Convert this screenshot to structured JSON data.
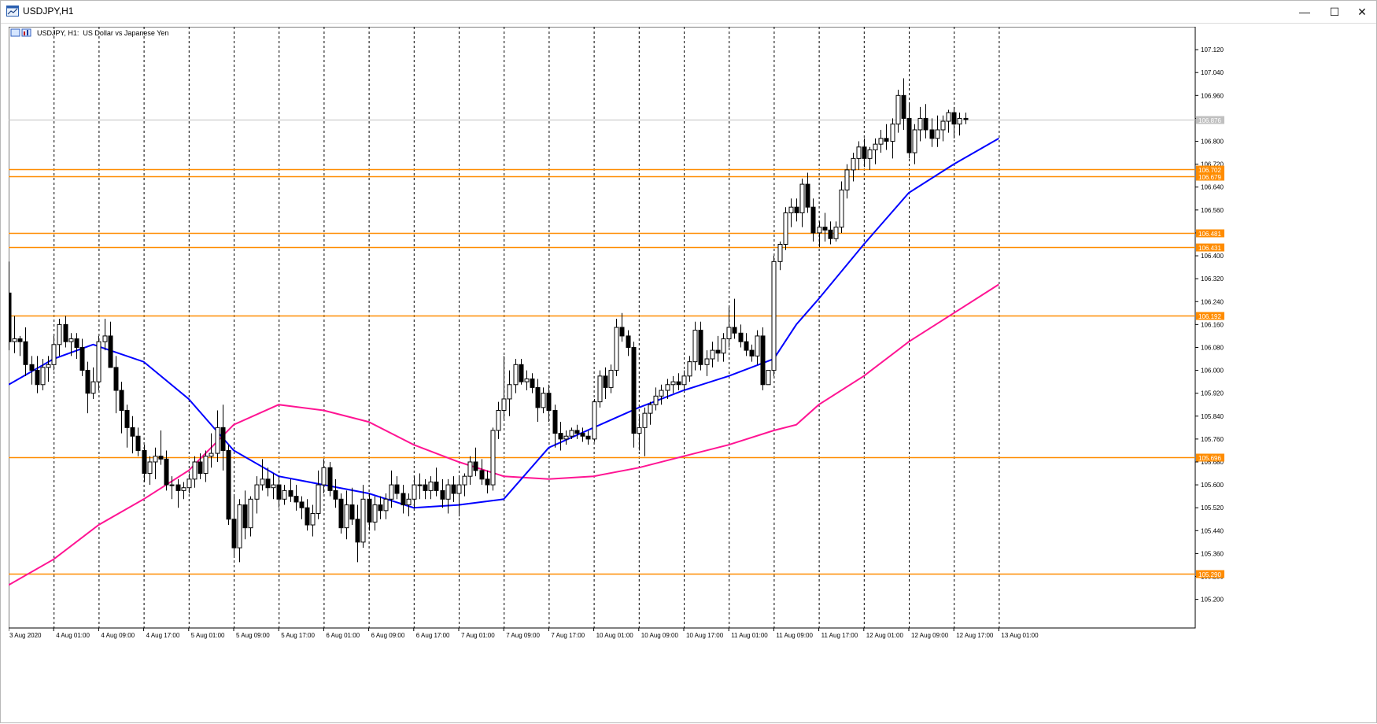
{
  "window": {
    "title": "USDJPY,H1",
    "buttons": {
      "minimize": "—",
      "maximize": "☐",
      "close": "✕"
    }
  },
  "chart_data": {
    "type": "candlestick",
    "title": "USDJPY, H1:  US Dollar vs Japanese Yen",
    "symbol": "USDJPY",
    "timeframe": "H1",
    "ylim": [
      105.1,
      107.2
    ],
    "grid": "vertical-dashed",
    "y_ticks": [
      "107.120",
      "107.040",
      "106.960",
      "106.880",
      "106.800",
      "106.720",
      "106.640",
      "106.560",
      "106.480",
      "106.400",
      "106.320",
      "106.240",
      "106.160",
      "106.080",
      "106.000",
      "105.920",
      "105.840",
      "105.760",
      "105.680",
      "105.600",
      "105.520",
      "105.440",
      "105.360",
      "105.280",
      "105.200"
    ],
    "y_tick_values": [
      107.12,
      107.04,
      106.96,
      106.88,
      106.8,
      106.72,
      106.64,
      106.56,
      106.48,
      106.4,
      106.32,
      106.24,
      106.16,
      106.08,
      106.0,
      105.92,
      105.84,
      105.76,
      105.68,
      105.6,
      105.52,
      105.44,
      105.36,
      105.28,
      105.2
    ],
    "x_ticks": [
      "3 Aug 2020",
      "4 Aug 01:00",
      "4 Aug 09:00",
      "4 Aug 17:00",
      "5 Aug 01:00",
      "5 Aug 09:00",
      "5 Aug 17:00",
      "6 Aug 01:00",
      "6 Aug 09:00",
      "6 Aug 17:00",
      "7 Aug 01:00",
      "7 Aug 09:00",
      "7 Aug 17:00",
      "10 Aug 01:00",
      "10 Aug 09:00",
      "10 Aug 17:00",
      "11 Aug 01:00",
      "11 Aug 09:00",
      "11 Aug 17:00",
      "12 Aug 01:00",
      "12 Aug 09:00",
      "12 Aug 17:00",
      "13 Aug 01:00"
    ],
    "x_tick_bars": [
      0,
      8,
      16,
      24,
      32,
      40,
      48,
      56,
      64,
      72,
      80,
      88,
      96,
      104,
      112,
      120,
      128,
      136,
      144,
      152,
      160,
      168,
      176
    ],
    "current_price": {
      "label": "106.876",
      "value": 106.876
    },
    "horizontal_levels": [
      {
        "label": "106.702",
        "value": 106.702
      },
      {
        "label": "106.679",
        "value": 106.679
      },
      {
        "label": "106.481",
        "value": 106.481
      },
      {
        "label": "106.431",
        "value": 106.431
      },
      {
        "label": "106.192",
        "value": 106.192
      },
      {
        "label": "105.696",
        "value": 105.696
      },
      {
        "label": "105.290",
        "value": 105.29
      }
    ],
    "ma_fast_points": [
      [
        0,
        105.95
      ],
      [
        8,
        106.04
      ],
      [
        15,
        106.09
      ],
      [
        24,
        106.03
      ],
      [
        32,
        105.9
      ],
      [
        40,
        105.72
      ],
      [
        48,
        105.63
      ],
      [
        56,
        105.6
      ],
      [
        64,
        105.57
      ],
      [
        72,
        105.52
      ],
      [
        80,
        105.53
      ],
      [
        88,
        105.55
      ],
      [
        96,
        105.73
      ],
      [
        104,
        105.8
      ],
      [
        112,
        105.87
      ],
      [
        120,
        105.93
      ],
      [
        128,
        105.98
      ],
      [
        136,
        106.04
      ],
      [
        140,
        106.16
      ],
      [
        144,
        106.25
      ],
      [
        152,
        106.44
      ],
      [
        160,
        106.62
      ],
      [
        168,
        106.72
      ],
      [
        176,
        106.81
      ]
    ],
    "ma_slow_points": [
      [
        0,
        105.25
      ],
      [
        8,
        105.34
      ],
      [
        16,
        105.46
      ],
      [
        24,
        105.55
      ],
      [
        32,
        105.65
      ],
      [
        40,
        105.81
      ],
      [
        48,
        105.88
      ],
      [
        56,
        105.86
      ],
      [
        64,
        105.82
      ],
      [
        72,
        105.74
      ],
      [
        80,
        105.68
      ],
      [
        88,
        105.63
      ],
      [
        96,
        105.62
      ],
      [
        104,
        105.63
      ],
      [
        112,
        105.66
      ],
      [
        120,
        105.7
      ],
      [
        128,
        105.74
      ],
      [
        136,
        105.79
      ],
      [
        140,
        105.81
      ],
      [
        144,
        105.88
      ],
      [
        152,
        105.98
      ],
      [
        160,
        106.1
      ],
      [
        168,
        106.2
      ],
      [
        176,
        106.3
      ]
    ],
    "candles": [
      [
        106.27,
        106.38,
        106.07,
        106.1
      ],
      [
        106.1,
        106.19,
        106.06,
        106.11
      ],
      [
        106.11,
        106.12,
        106.05,
        106.1
      ],
      [
        106.1,
        106.15,
        105.98,
        106.02
      ],
      [
        106.02,
        106.05,
        105.95,
        106.0
      ],
      [
        106.0,
        106.05,
        105.92,
        105.95
      ],
      [
        105.95,
        106.04,
        105.93,
        106.01
      ],
      [
        106.01,
        106.05,
        105.96,
        106.02
      ],
      [
        106.02,
        106.12,
        106.0,
        106.09
      ],
      [
        106.09,
        106.18,
        106.05,
        106.16
      ],
      [
        106.16,
        106.19,
        106.08,
        106.1
      ],
      [
        106.1,
        106.13,
        106.05,
        106.11
      ],
      [
        106.11,
        106.13,
        106.04,
        106.08
      ],
      [
        106.08,
        106.11,
        105.98,
        106.0
      ],
      [
        106.0,
        106.03,
        105.85,
        105.92
      ],
      [
        105.92,
        106.01,
        105.9,
        105.96
      ],
      [
        105.96,
        106.12,
        105.93,
        106.1
      ],
      [
        106.1,
        106.18,
        106.07,
        106.12
      ],
      [
        106.12,
        106.17,
        106.02,
        106.01
      ],
      [
        106.01,
        106.05,
        105.85,
        105.93
      ],
      [
        105.93,
        105.96,
        105.78,
        105.86
      ],
      [
        105.86,
        105.88,
        105.73,
        105.8
      ],
      [
        105.8,
        105.84,
        105.71,
        105.77
      ],
      [
        105.77,
        105.8,
        105.7,
        105.72
      ],
      [
        105.72,
        105.74,
        105.61,
        105.64
      ],
      [
        105.64,
        105.7,
        105.6,
        105.68
      ],
      [
        105.68,
        105.73,
        105.62,
        105.7
      ],
      [
        105.7,
        105.79,
        105.67,
        105.69
      ],
      [
        105.69,
        105.72,
        105.58,
        105.6
      ],
      [
        105.6,
        105.63,
        105.55,
        105.6
      ],
      [
        105.6,
        105.62,
        105.52,
        105.58
      ],
      [
        105.58,
        105.61,
        105.55,
        105.59
      ],
      [
        105.59,
        105.64,
        105.57,
        105.62
      ],
      [
        105.62,
        105.7,
        105.59,
        105.68
      ],
      [
        105.68,
        105.71,
        105.62,
        105.64
      ],
      [
        105.64,
        105.72,
        105.61,
        105.7
      ],
      [
        105.7,
        105.78,
        105.66,
        105.71
      ],
      [
        105.71,
        105.86,
        105.68,
        105.8
      ],
      [
        105.8,
        105.88,
        105.65,
        105.72
      ],
      [
        105.72,
        105.74,
        105.46,
        105.48
      ],
      [
        105.48,
        105.56,
        105.35,
        105.38
      ],
      [
        105.38,
        105.55,
        105.33,
        105.53
      ],
      [
        105.53,
        105.58,
        105.41,
        105.45
      ],
      [
        105.45,
        105.56,
        105.42,
        105.55
      ],
      [
        105.55,
        105.63,
        105.5,
        105.6
      ],
      [
        105.6,
        105.69,
        105.58,
        105.62
      ],
      [
        105.62,
        105.66,
        105.56,
        105.59
      ],
      [
        105.59,
        105.64,
        105.55,
        105.6
      ],
      [
        105.6,
        105.63,
        105.52,
        105.55
      ],
      [
        105.55,
        105.6,
        105.53,
        105.58
      ],
      [
        105.58,
        105.62,
        105.54,
        105.56
      ],
      [
        105.56,
        105.6,
        105.51,
        105.54
      ],
      [
        105.54,
        105.56,
        105.48,
        105.52
      ],
      [
        105.52,
        105.55,
        105.44,
        105.46
      ],
      [
        105.46,
        105.53,
        105.42,
        105.5
      ],
      [
        105.5,
        105.65,
        105.48,
        105.6
      ],
      [
        105.6,
        105.69,
        105.57,
        105.66
      ],
      [
        105.66,
        105.68,
        105.56,
        105.58
      ],
      [
        105.58,
        105.62,
        105.52,
        105.55
      ],
      [
        105.55,
        105.57,
        105.43,
        105.45
      ],
      [
        105.45,
        105.58,
        105.41,
        105.53
      ],
      [
        105.53,
        105.59,
        105.46,
        105.48
      ],
      [
        105.48,
        105.53,
        105.33,
        105.4
      ],
      [
        105.4,
        105.6,
        105.38,
        105.55
      ],
      [
        105.55,
        105.57,
        105.44,
        105.47
      ],
      [
        105.47,
        105.56,
        105.44,
        105.53
      ],
      [
        105.53,
        105.56,
        105.48,
        105.51
      ],
      [
        105.51,
        105.57,
        105.48,
        105.55
      ],
      [
        105.55,
        105.65,
        105.52,
        105.6
      ],
      [
        105.6,
        105.63,
        105.55,
        105.57
      ],
      [
        105.57,
        105.6,
        105.5,
        105.53
      ],
      [
        105.53,
        105.57,
        105.49,
        105.55
      ],
      [
        105.55,
        105.63,
        105.52,
        105.6
      ],
      [
        105.6,
        105.64,
        105.55,
        105.6
      ],
      [
        105.6,
        105.62,
        105.55,
        105.58
      ],
      [
        105.58,
        105.63,
        105.55,
        105.61
      ],
      [
        105.61,
        105.66,
        105.56,
        105.58
      ],
      [
        105.58,
        105.62,
        105.52,
        105.55
      ],
      [
        105.55,
        105.62,
        105.5,
        105.6
      ],
      [
        105.6,
        105.63,
        105.54,
        105.57
      ],
      [
        105.57,
        105.63,
        105.49,
        105.6
      ],
      [
        105.6,
        105.64,
        105.56,
        105.63
      ],
      [
        105.63,
        105.7,
        105.6,
        105.68
      ],
      [
        105.68,
        105.73,
        105.63,
        105.65
      ],
      [
        105.65,
        105.69,
        105.6,
        105.62
      ],
      [
        105.62,
        105.65,
        105.57,
        105.6
      ],
      [
        105.6,
        105.8,
        105.58,
        105.79
      ],
      [
        105.79,
        105.89,
        105.76,
        105.86
      ],
      [
        105.86,
        106.05,
        105.83,
        105.9
      ],
      [
        105.9,
        106.0,
        105.84,
        105.95
      ],
      [
        105.95,
        106.04,
        105.92,
        106.02
      ],
      [
        106.02,
        106.04,
        105.95,
        105.96
      ],
      [
        105.96,
        106.0,
        105.93,
        105.97
      ],
      [
        105.97,
        105.99,
        105.92,
        105.94
      ],
      [
        105.94,
        105.97,
        105.82,
        105.87
      ],
      [
        105.87,
        105.94,
        105.85,
        105.92
      ],
      [
        105.92,
        105.95,
        105.82,
        105.86
      ],
      [
        105.86,
        105.88,
        105.73,
        105.78
      ],
      [
        105.78,
        105.82,
        105.72,
        105.76
      ],
      [
        105.76,
        105.79,
        105.74,
        105.77
      ],
      [
        105.77,
        105.8,
        105.76,
        105.79
      ],
      [
        105.79,
        105.81,
        105.76,
        105.78
      ],
      [
        105.78,
        105.8,
        105.75,
        105.77
      ],
      [
        105.77,
        105.79,
        105.74,
        105.76
      ],
      [
        105.76,
        105.9,
        105.75,
        105.89
      ],
      [
        105.89,
        106.0,
        105.87,
        105.98
      ],
      [
        105.98,
        106.01,
        105.9,
        105.94
      ],
      [
        105.94,
        106.02,
        105.92,
        106.0
      ],
      [
        106.0,
        106.18,
        105.98,
        106.15
      ],
      [
        106.15,
        106.2,
        106.1,
        106.12
      ],
      [
        106.12,
        106.14,
        106.05,
        106.08
      ],
      [
        106.08,
        106.1,
        105.73,
        105.78
      ],
      [
        105.78,
        105.84,
        105.72,
        105.8
      ],
      [
        105.8,
        105.87,
        105.7,
        105.85
      ],
      [
        105.85,
        105.89,
        105.81,
        105.88
      ],
      [
        105.88,
        105.94,
        105.86,
        105.91
      ],
      [
        105.91,
        105.95,
        105.88,
        105.93
      ],
      [
        105.93,
        105.97,
        105.9,
        105.95
      ],
      [
        105.95,
        105.98,
        105.92,
        105.96
      ],
      [
        105.96,
        105.99,
        105.93,
        105.95
      ],
      [
        105.95,
        106.0,
        105.93,
        105.98
      ],
      [
        105.98,
        106.05,
        105.96,
        106.03
      ],
      [
        106.03,
        106.17,
        106.0,
        106.14
      ],
      [
        106.14,
        106.17,
        106.0,
        106.02
      ],
      [
        106.02,
        106.07,
        105.98,
        106.04
      ],
      [
        106.04,
        106.1,
        106.01,
        106.07
      ],
      [
        106.07,
        106.12,
        106.03,
        106.06
      ],
      [
        106.06,
        106.13,
        106.03,
        106.11
      ],
      [
        106.11,
        106.22,
        106.08,
        106.15
      ],
      [
        106.15,
        106.25,
        106.11,
        106.13
      ],
      [
        106.13,
        106.16,
        106.08,
        106.1
      ],
      [
        106.1,
        106.13,
        106.05,
        106.07
      ],
      [
        106.07,
        106.09,
        106.03,
        106.05
      ],
      [
        106.05,
        106.14,
        106.02,
        106.12
      ],
      [
        106.12,
        106.15,
        105.93,
        105.95
      ],
      [
        105.95,
        106.0,
        105.96,
        106.0
      ],
      [
        106.0,
        106.4,
        105.98,
        106.38
      ],
      [
        106.38,
        106.45,
        106.35,
        106.44
      ],
      [
        106.44,
        106.57,
        106.42,
        106.55
      ],
      [
        106.55,
        106.6,
        106.5,
        106.57
      ],
      [
        106.57,
        106.6,
        106.52,
        106.55
      ],
      [
        106.55,
        106.67,
        106.5,
        106.65
      ],
      [
        106.65,
        106.69,
        106.55,
        106.57
      ],
      [
        106.57,
        106.6,
        106.45,
        106.48
      ],
      [
        106.48,
        106.52,
        106.43,
        106.5
      ],
      [
        106.5,
        106.55,
        106.45,
        106.49
      ],
      [
        106.49,
        106.52,
        106.44,
        106.46
      ],
      [
        106.46,
        106.52,
        106.45,
        106.5
      ],
      [
        106.5,
        106.66,
        106.48,
        106.63
      ],
      [
        106.63,
        106.72,
        106.6,
        106.7
      ],
      [
        106.7,
        106.76,
        106.66,
        106.74
      ],
      [
        106.74,
        106.8,
        106.7,
        106.78
      ],
      [
        106.78,
        106.81,
        106.71,
        106.74
      ],
      [
        106.74,
        106.78,
        106.7,
        106.77
      ],
      [
        106.77,
        106.81,
        106.72,
        106.79
      ],
      [
        106.79,
        106.84,
        106.76,
        106.81
      ],
      [
        106.81,
        106.86,
        106.77,
        106.8
      ],
      [
        106.8,
        106.88,
        106.74,
        106.86
      ],
      [
        106.86,
        106.98,
        106.83,
        106.96
      ],
      [
        106.96,
        107.02,
        106.84,
        106.88
      ],
      [
        106.88,
        106.93,
        106.74,
        106.76
      ],
      [
        106.76,
        106.86,
        106.72,
        106.84
      ],
      [
        106.84,
        106.92,
        106.8,
        106.88
      ],
      [
        106.88,
        106.93,
        106.81,
        106.84
      ],
      [
        106.84,
        106.88,
        106.78,
        106.81
      ],
      [
        106.81,
        106.89,
        106.78,
        106.84
      ],
      [
        106.84,
        106.89,
        106.8,
        106.87
      ],
      [
        106.87,
        106.91,
        106.83,
        106.9
      ],
      [
        106.9,
        106.92,
        106.81,
        106.86
      ],
      [
        106.86,
        106.9,
        106.82,
        106.88
      ],
      [
        106.88,
        106.9,
        106.86,
        106.876
      ]
    ]
  }
}
